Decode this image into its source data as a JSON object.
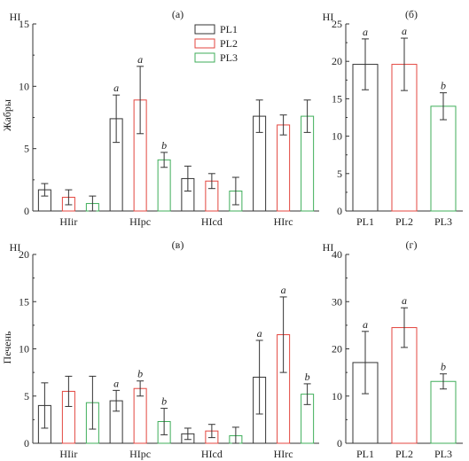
{
  "colors": {
    "PL1": "#333333",
    "PL2": "#e3463f",
    "PL3": "#3fae5a"
  },
  "row_labels": {
    "top": "Жабры",
    "bottom": "Печень"
  },
  "chart_data": [
    {
      "id": "a",
      "type": "bar",
      "panel_label": "(а)",
      "ylabel": "HI",
      "ylim": [
        0,
        15
      ],
      "yticks": [
        0,
        5,
        10,
        15
      ],
      "categories": [
        "HIir",
        "HIpc",
        "HIcd",
        "HIrc"
      ],
      "legend": {
        "placement": "top-center",
        "entries": [
          "PL1",
          "PL2",
          "PL3"
        ]
      },
      "series": [
        {
          "name": "PL1",
          "values": [
            1.7,
            7.4,
            2.6,
            7.6
          ],
          "errors": [
            0.5,
            1.9,
            1.0,
            1.3
          ],
          "sig": [
            "",
            "a",
            "",
            ""
          ]
        },
        {
          "name": "PL2",
          "values": [
            1.1,
            8.9,
            2.4,
            6.9
          ],
          "errors": [
            0.6,
            2.7,
            0.6,
            0.8
          ],
          "sig": [
            "",
            "a",
            "",
            ""
          ]
        },
        {
          "name": "PL3",
          "values": [
            0.6,
            4.1,
            1.6,
            7.6
          ],
          "errors": [
            0.6,
            0.6,
            1.1,
            1.3
          ],
          "sig": [
            "",
            "b",
            "",
            ""
          ]
        }
      ]
    },
    {
      "id": "b",
      "type": "bar",
      "panel_label": "(б)",
      "ylabel": "HI",
      "ylim": [
        0,
        25
      ],
      "yticks": [
        0,
        5,
        10,
        15,
        20,
        25
      ],
      "categories": [
        "PL1",
        "PL2",
        "PL3"
      ],
      "series": [
        {
          "name": "",
          "values": [
            19.6,
            19.6,
            14.0
          ],
          "errors": [
            3.4,
            3.5,
            1.8
          ],
          "sig": [
            "a",
            "a",
            "b"
          ]
        }
      ]
    },
    {
      "id": "c",
      "type": "bar",
      "panel_label": "(в)",
      "ylabel": "HI",
      "ylim": [
        0,
        20
      ],
      "yticks": [
        0,
        5,
        10,
        15,
        20
      ],
      "categories": [
        "HIir",
        "HIpc",
        "HIcd",
        "HIrc"
      ],
      "series": [
        {
          "name": "PL1",
          "values": [
            4.0,
            4.5,
            1.0,
            7.0
          ],
          "errors": [
            2.4,
            1.1,
            0.6,
            3.9
          ],
          "sig": [
            "",
            "a",
            "",
            "a"
          ]
        },
        {
          "name": "PL2",
          "values": [
            5.5,
            5.8,
            1.3,
            11.5
          ],
          "errors": [
            1.6,
            0.8,
            0.7,
            4.0
          ],
          "sig": [
            "",
            "b",
            "",
            "a"
          ]
        },
        {
          "name": "PL3",
          "values": [
            4.3,
            2.3,
            0.8,
            5.2
          ],
          "errors": [
            2.8,
            1.4,
            0.9,
            1.1
          ],
          "sig": [
            "",
            "b",
            "",
            "b"
          ]
        }
      ]
    },
    {
      "id": "d",
      "type": "bar",
      "panel_label": "(г)",
      "ylabel": "HI",
      "ylim": [
        0,
        40
      ],
      "yticks": [
        0,
        10,
        20,
        30,
        40
      ],
      "categories": [
        "PL1",
        "PL2",
        "PL3"
      ],
      "series": [
        {
          "name": "",
          "values": [
            17.1,
            24.5,
            13.1
          ],
          "errors": [
            6.6,
            4.2,
            1.6
          ],
          "sig": [
            "a",
            "a",
            "b"
          ]
        }
      ]
    }
  ]
}
